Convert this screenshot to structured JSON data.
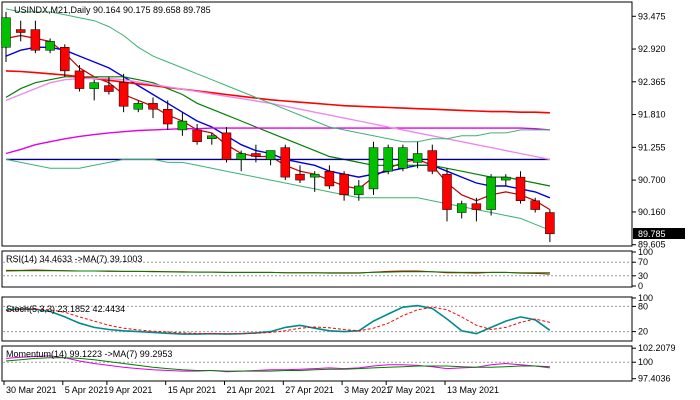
{
  "header": {
    "symbol": "USINDX,M21,Daily",
    "ohlc": "90.164 90.175 89.658 89.785"
  },
  "chart_data": [
    {
      "type": "candlestick",
      "panel": "price",
      "ylim": [
        89.6,
        93.7
      ],
      "y_ticks": [
        "93.475",
        "92.920",
        "92.365",
        "91.810",
        "91.255",
        "90.700",
        "90.160",
        "89.605"
      ],
      "current_price_label": "89.785",
      "colors": {
        "up": "#00c000",
        "down": "#ff0000",
        "wick": "#000000"
      },
      "candles": [
        {
          "o": 92.95,
          "h": 93.55,
          "l": 92.7,
          "c": 93.45
        },
        {
          "o": 93.25,
          "h": 93.4,
          "l": 93.05,
          "c": 93.2
        },
        {
          "o": 93.25,
          "h": 93.4,
          "l": 92.85,
          "c": 92.9
        },
        {
          "o": 92.9,
          "h": 93.1,
          "l": 92.85,
          "c": 93.05
        },
        {
          "o": 92.95,
          "h": 93.0,
          "l": 92.45,
          "c": 92.55
        },
        {
          "o": 92.55,
          "h": 92.65,
          "l": 92.2,
          "c": 92.25
        },
        {
          "o": 92.25,
          "h": 92.4,
          "l": 92.05,
          "c": 92.35
        },
        {
          "o": 92.3,
          "h": 92.45,
          "l": 92.15,
          "c": 92.2
        },
        {
          "o": 92.35,
          "h": 92.5,
          "l": 91.85,
          "c": 91.95
        },
        {
          "o": 91.9,
          "h": 92.05,
          "l": 91.85,
          "c": 92.0
        },
        {
          "o": 92.0,
          "h": 92.1,
          "l": 91.75,
          "c": 91.9
        },
        {
          "o": 91.9,
          "h": 92.05,
          "l": 91.55,
          "c": 91.65
        },
        {
          "o": 91.55,
          "h": 91.85,
          "l": 91.45,
          "c": 91.7
        },
        {
          "o": 91.55,
          "h": 91.65,
          "l": 91.3,
          "c": 91.35
        },
        {
          "o": 91.4,
          "h": 91.5,
          "l": 91.3,
          "c": 91.45
        },
        {
          "o": 91.5,
          "h": 91.6,
          "l": 91.0,
          "c": 91.05
        },
        {
          "o": 91.05,
          "h": 91.2,
          "l": 90.85,
          "c": 91.15
        },
        {
          "o": 91.15,
          "h": 91.3,
          "l": 91.0,
          "c": 91.1
        },
        {
          "o": 91.05,
          "h": 91.2,
          "l": 90.95,
          "c": 91.2
        },
        {
          "o": 91.25,
          "h": 91.3,
          "l": 90.7,
          "c": 90.75
        },
        {
          "o": 90.8,
          "h": 90.95,
          "l": 90.65,
          "c": 90.7
        },
        {
          "o": 90.75,
          "h": 90.85,
          "l": 90.5,
          "c": 90.8
        },
        {
          "o": 90.85,
          "h": 90.95,
          "l": 90.55,
          "c": 90.6
        },
        {
          "o": 90.8,
          "h": 90.85,
          "l": 90.35,
          "c": 90.45
        },
        {
          "o": 90.45,
          "h": 90.7,
          "l": 90.35,
          "c": 90.6
        },
        {
          "o": 90.55,
          "h": 91.35,
          "l": 90.45,
          "c": 91.25
        },
        {
          "o": 90.85,
          "h": 91.3,
          "l": 90.8,
          "c": 91.25
        },
        {
          "o": 90.9,
          "h": 91.3,
          "l": 90.85,
          "c": 91.25
        },
        {
          "o": 91.0,
          "h": 91.35,
          "l": 90.9,
          "c": 91.15
        },
        {
          "o": 91.2,
          "h": 91.3,
          "l": 90.8,
          "c": 90.85
        },
        {
          "o": 90.8,
          "h": 90.9,
          "l": 90.0,
          "c": 90.2
        },
        {
          "o": 90.15,
          "h": 90.35,
          "l": 90.05,
          "c": 90.3
        },
        {
          "o": 90.3,
          "h": 90.4,
          "l": 90.0,
          "c": 90.2
        },
        {
          "o": 90.2,
          "h": 90.8,
          "l": 90.1,
          "c": 90.75
        },
        {
          "o": 90.7,
          "h": 90.8,
          "l": 90.6,
          "c": 90.75
        },
        {
          "o": 90.75,
          "h": 90.85,
          "l": 90.3,
          "c": 90.35
        },
        {
          "o": 90.35,
          "h": 90.4,
          "l": 90.15,
          "c": 90.2
        },
        {
          "o": 90.15,
          "h": 90.2,
          "l": 89.65,
          "c": 89.79
        }
      ],
      "overlays": [
        {
          "color": "#c00000",
          "width": 1.2,
          "values": [
            93.1,
            93.15,
            93.1,
            93.05,
            92.85,
            92.6,
            92.45,
            92.35,
            92.15,
            92.05,
            91.95,
            91.8,
            91.7,
            91.55,
            91.5,
            91.3,
            91.15,
            91.1,
            91.1,
            90.95,
            90.85,
            90.8,
            90.7,
            90.6,
            90.55,
            90.75,
            90.9,
            91.0,
            91.05,
            90.95,
            90.65,
            90.45,
            90.35,
            90.45,
            90.5,
            90.45,
            90.35,
            90.2
          ]
        },
        {
          "color": "#0000e0",
          "width": 1.4,
          "values": [
            92.8,
            92.9,
            92.95,
            92.95,
            92.9,
            92.8,
            92.7,
            92.6,
            92.45,
            92.3,
            92.15,
            92.0,
            91.85,
            91.7,
            91.6,
            91.45,
            91.3,
            91.2,
            91.15,
            91.05,
            91.0,
            90.95,
            90.85,
            90.8,
            90.75,
            90.8,
            90.85,
            90.9,
            90.95,
            90.95,
            90.85,
            90.75,
            90.65,
            90.6,
            90.6,
            90.55,
            90.5,
            90.4
          ]
        },
        {
          "color": "#008000",
          "width": 1.2,
          "values": [
            92.1,
            92.25,
            92.35,
            92.4,
            92.45,
            92.45,
            92.45,
            92.45,
            92.45,
            92.4,
            92.35,
            92.25,
            92.15,
            92.0,
            91.9,
            91.8,
            91.7,
            91.6,
            91.5,
            91.4,
            91.3,
            91.2,
            91.1,
            91.05,
            91.0,
            90.95,
            90.95,
            90.95,
            90.95,
            90.95,
            90.9,
            90.85,
            90.8,
            90.75,
            90.75,
            90.7,
            90.65,
            90.6
          ]
        },
        {
          "color": "#e000e0",
          "width": 1.4,
          "values": [
            91.15,
            91.22,
            91.3,
            91.35,
            91.4,
            91.44,
            91.47,
            91.5,
            91.52,
            91.54,
            91.55,
            91.56,
            91.57,
            91.57,
            91.58,
            91.58,
            91.58,
            91.58,
            91.58,
            91.58,
            91.58,
            91.58,
            91.58,
            91.58,
            91.58,
            91.58,
            91.58,
            91.58,
            91.58,
            91.58,
            91.58,
            91.58,
            91.58,
            91.58,
            91.58,
            91.58,
            91.57,
            91.55
          ]
        },
        {
          "color": "#ff0000",
          "width": 1.6,
          "values": [
            92.55,
            92.54,
            92.52,
            92.5,
            92.48,
            92.45,
            92.42,
            92.39,
            92.36,
            92.33,
            92.3,
            92.27,
            92.24,
            92.21,
            92.18,
            92.15,
            92.12,
            92.09,
            92.06,
            92.04,
            92.02,
            92.0,
            91.98,
            91.96,
            91.95,
            91.94,
            91.93,
            91.92,
            91.91,
            91.9,
            91.89,
            91.88,
            91.87,
            91.86,
            91.86,
            91.85,
            91.85,
            91.84
          ]
        },
        {
          "color": "#000080",
          "width": 1.4,
          "values": [
            91.05,
            91.05,
            91.05,
            91.05,
            91.05,
            91.05,
            91.05,
            91.05,
            91.05,
            91.05,
            91.05,
            91.05,
            91.05,
            91.05,
            91.05,
            91.05,
            91.05,
            91.05,
            91.05,
            91.05,
            91.05,
            91.05,
            91.05,
            91.05,
            91.05,
            91.05,
            91.05,
            91.05,
            91.05,
            91.05,
            91.05,
            91.05,
            91.05,
            91.05,
            91.05,
            91.05,
            91.05,
            91.05
          ]
        },
        {
          "color": "#ee88ee",
          "width": 1.4,
          "values": [
            92.05,
            92.15,
            92.25,
            92.35,
            92.4,
            92.42,
            92.42,
            92.42,
            92.4,
            92.36,
            92.32,
            92.28,
            92.24,
            92.2,
            92.16,
            92.12,
            92.08,
            92.04,
            92.0,
            91.95,
            91.9,
            91.85,
            91.8,
            91.75,
            91.7,
            91.65,
            91.6,
            91.55,
            91.5,
            91.45,
            91.4,
            91.35,
            91.3,
            91.25,
            91.2,
            91.15,
            91.1,
            91.05
          ]
        },
        {
          "color": "#3cb371",
          "width": 1,
          "values": [
            93.6,
            93.55,
            93.55,
            93.55,
            93.5,
            93.45,
            93.4,
            93.3,
            93.15,
            92.95,
            92.8,
            92.7,
            92.6,
            92.5,
            92.4,
            92.3,
            92.2,
            92.1,
            92.0,
            91.9,
            91.8,
            91.7,
            91.6,
            91.55,
            91.5,
            91.45,
            91.4,
            91.35,
            91.35,
            91.4,
            91.4,
            91.45,
            91.45,
            91.5,
            91.5,
            91.55,
            91.55,
            91.55
          ]
        },
        {
          "color": "#3cb371",
          "width": 1,
          "values": [
            91.05,
            91.0,
            90.95,
            90.9,
            90.9,
            90.9,
            90.95,
            91.0,
            91.05,
            91.05,
            91.05,
            91.0,
            91.0,
            90.95,
            90.9,
            90.85,
            90.8,
            90.75,
            90.7,
            90.65,
            90.6,
            90.55,
            90.5,
            90.45,
            90.4,
            90.4,
            90.4,
            90.4,
            90.4,
            90.35,
            90.3,
            90.25,
            90.2,
            90.15,
            90.1,
            90.05,
            89.95,
            89.85
          ]
        }
      ]
    },
    {
      "type": "line",
      "panel": "indicator",
      "label": "RSI(14) 34.4633  ->MA(7) 39.1003",
      "ylim": [
        0,
        100
      ],
      "y_ticks": [
        "100",
        "70",
        "30",
        "0"
      ],
      "levels": [
        70,
        30
      ],
      "series": [
        {
          "color": "#c00000",
          "values": [
            46,
            46,
            47,
            46,
            45,
            44,
            44,
            44,
            43,
            43,
            43,
            42,
            42,
            41,
            41,
            40,
            40,
            40,
            40,
            39,
            39,
            39,
            38,
            38,
            38,
            41,
            43,
            44,
            44,
            42,
            39,
            39,
            38,
            40,
            40,
            38,
            37,
            35
          ]
        },
        {
          "color": "#008000",
          "values": [
            44,
            45,
            45,
            45,
            45,
            44,
            44,
            43,
            43,
            43,
            42,
            42,
            41,
            41,
            41,
            40,
            40,
            40,
            40,
            39,
            39,
            39,
            39,
            39,
            39,
            40,
            41,
            42,
            42,
            42,
            41,
            40,
            40,
            40,
            40,
            39,
            39,
            39
          ]
        }
      ]
    },
    {
      "type": "line",
      "panel": "indicator",
      "label": "Stoch(5,3,3) 23.1852 42.4434",
      "ylim": [
        0,
        100
      ],
      "y_ticks": [
        "100",
        "80",
        "20"
      ],
      "levels": [
        80,
        20
      ],
      "series": [
        {
          "color": "#008b8b",
          "width": 1.6,
          "values": [
            72,
            74,
            73,
            68,
            55,
            40,
            30,
            25,
            22,
            20,
            18,
            16,
            14,
            14,
            15,
            14,
            15,
            17,
            20,
            30,
            35,
            28,
            22,
            20,
            22,
            45,
            62,
            78,
            82,
            75,
            50,
            22,
            15,
            30,
            45,
            55,
            48,
            23
          ]
        },
        {
          "color": "#ff0000",
          "dash": "3,2",
          "values": [
            70,
            72,
            73,
            72,
            66,
            55,
            45,
            35,
            28,
            24,
            21,
            19,
            17,
            16,
            15,
            15,
            15,
            16,
            18,
            22,
            28,
            31,
            29,
            25,
            22,
            28,
            40,
            58,
            72,
            78,
            72,
            55,
            35,
            25,
            30,
            42,
            50,
            42
          ]
        }
      ]
    },
    {
      "type": "line",
      "panel": "indicator",
      "label": "Momentum(14) 99.1223  ->MA(7) 99.2953",
      "ylim": [
        97.2,
        102.4
      ],
      "y_ticks": [
        "102.2079",
        "100",
        "97.4036"
      ],
      "levels": [
        100
      ],
      "series": [
        {
          "color": "#e000e0",
          "values": [
            100.6,
            100.8,
            100.9,
            101.0,
            100.7,
            100.2,
            99.8,
            99.5,
            99.2,
            99.0,
            98.8,
            98.7,
            98.6,
            98.6,
            98.7,
            98.5,
            98.6,
            98.7,
            98.8,
            98.8,
            98.9,
            99.0,
            99.1,
            99.0,
            99.1,
            99.4,
            99.6,
            99.6,
            99.5,
            99.3,
            99.0,
            99.1,
            99.2,
            99.6,
            99.8,
            99.6,
            99.4,
            99.1
          ]
        },
        {
          "color": "#008000",
          "values": [
            100.2,
            100.4,
            100.6,
            100.7,
            100.7,
            100.6,
            100.4,
            100.1,
            99.8,
            99.5,
            99.2,
            99.0,
            98.8,
            98.7,
            98.7,
            98.6,
            98.6,
            98.6,
            98.6,
            98.7,
            98.7,
            98.8,
            98.9,
            98.9,
            99.0,
            99.1,
            99.2,
            99.3,
            99.4,
            99.4,
            99.4,
            99.3,
            99.2,
            99.2,
            99.3,
            99.4,
            99.4,
            99.3
          ]
        }
      ]
    }
  ],
  "x_labels": [
    "30 Mar 2021",
    "5 Apr 2021",
    "9 Apr 2021",
    "15 Apr 2021",
    "21 Apr 2021",
    "27 Apr 2021",
    "3 May 2021",
    "7 May 2021",
    "13 May 2021"
  ]
}
